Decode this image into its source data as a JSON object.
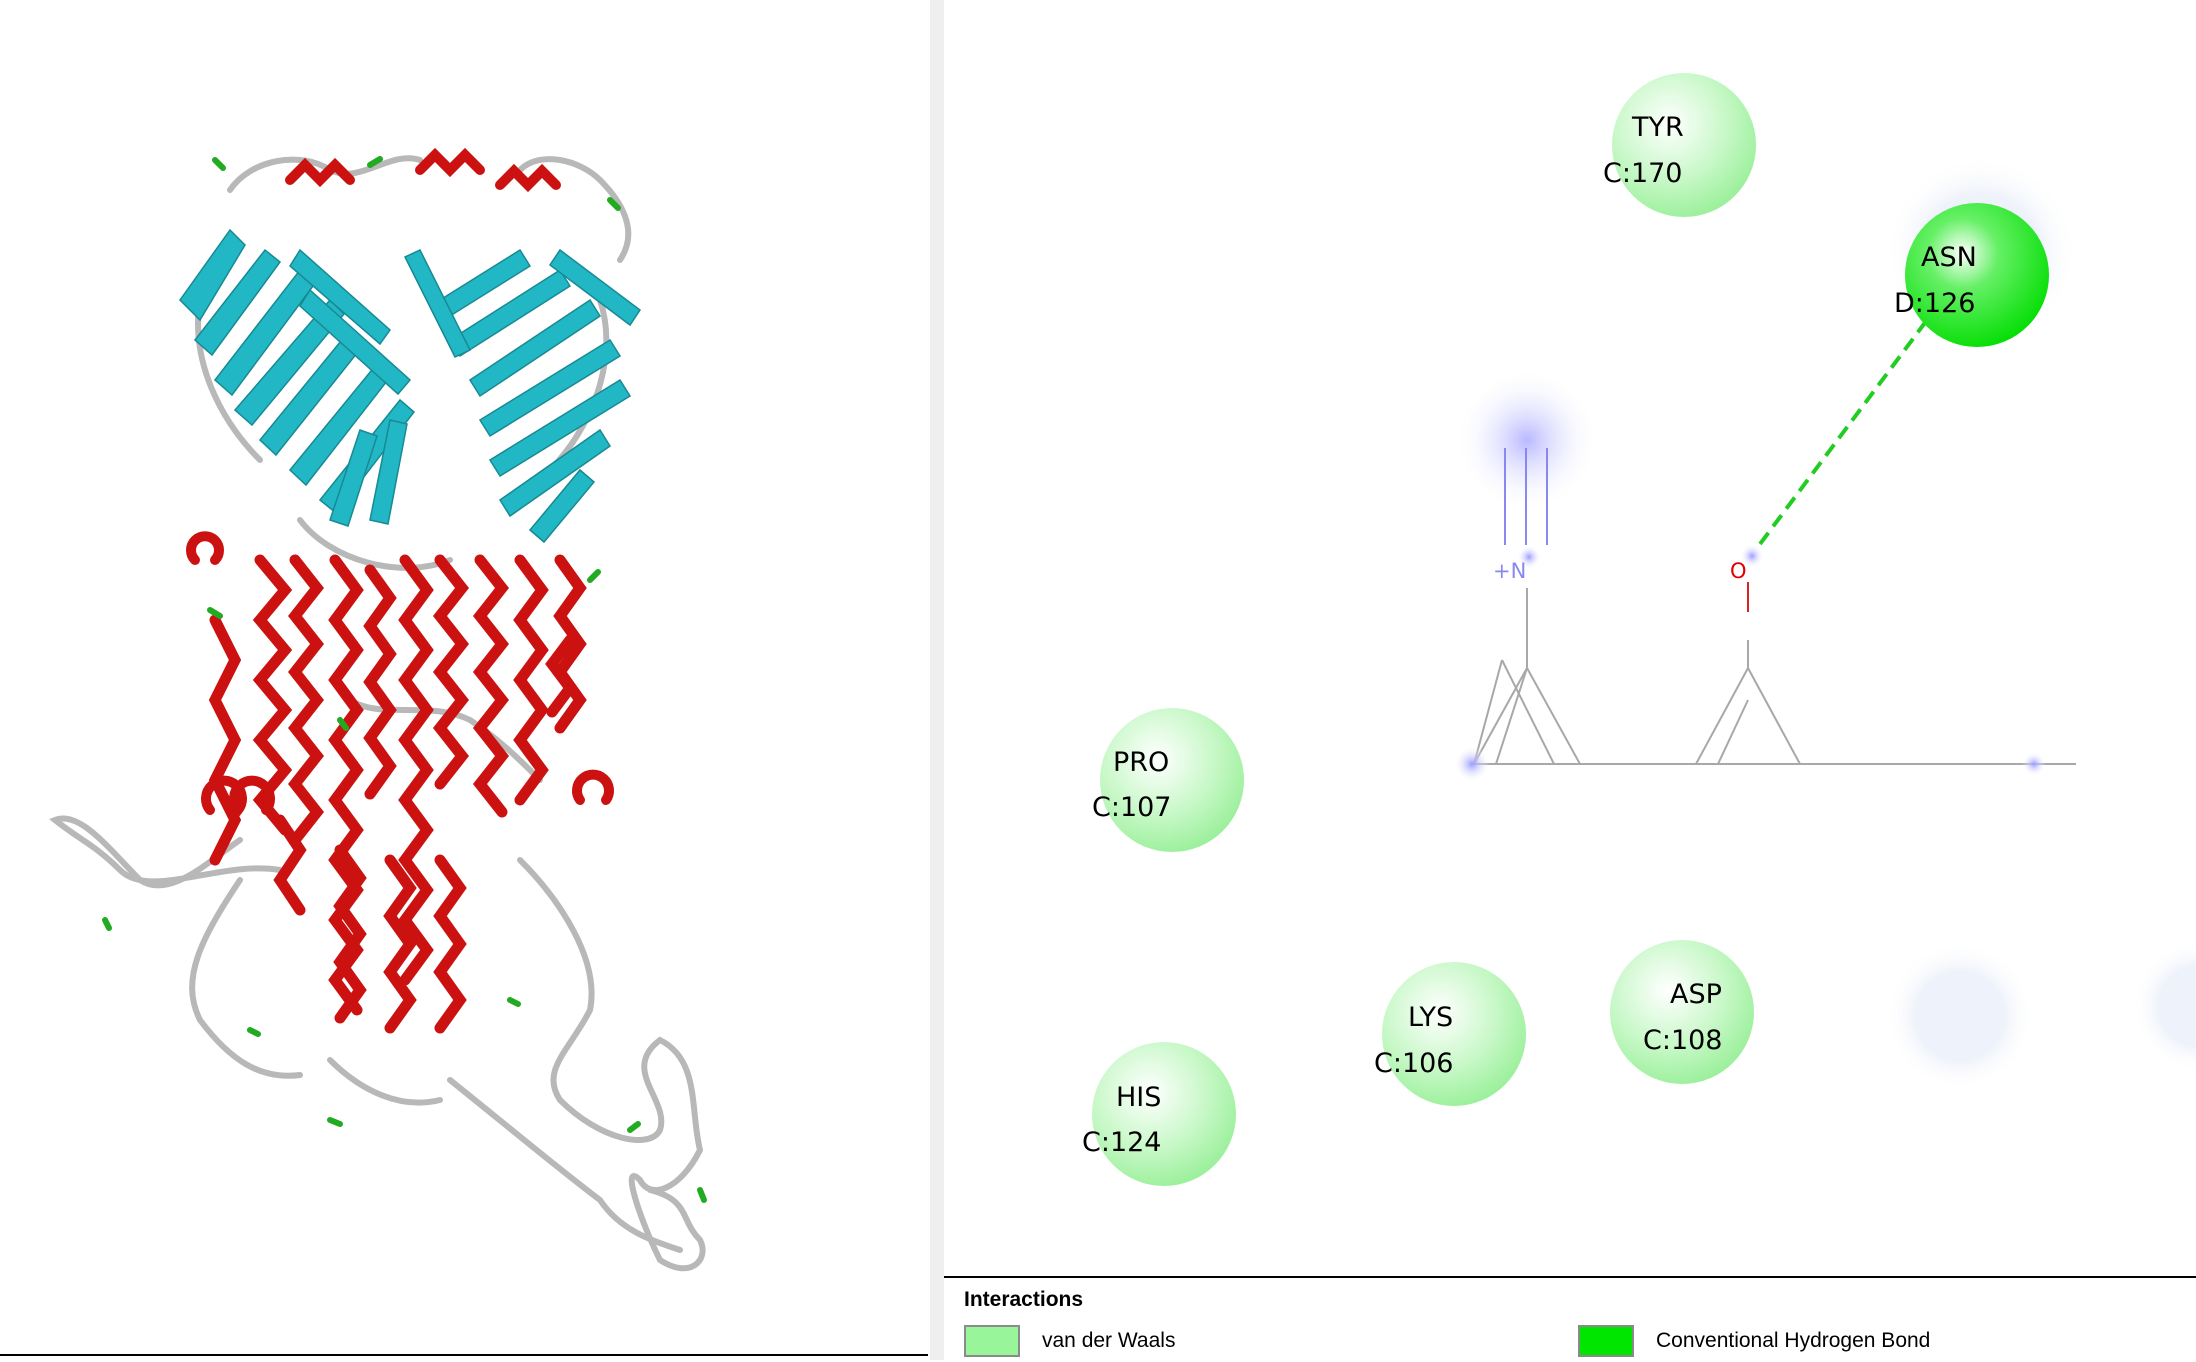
{
  "structure_view": {
    "colors": {
      "helix": "#cc1111",
      "sheet": "#22b7c4",
      "coil": "#b8b8b8",
      "turn": "#22aa22"
    }
  },
  "interaction_diagram": {
    "residues": [
      {
        "name": "TYR",
        "chain_pos": "C:170",
        "type": "vdw"
      },
      {
        "name": "ASN",
        "chain_pos": "D:126",
        "type": "hbond"
      },
      {
        "name": "PRO",
        "chain_pos": "C:107",
        "type": "vdw"
      },
      {
        "name": "LYS",
        "chain_pos": "C:106",
        "type": "vdw"
      },
      {
        "name": "ASP",
        "chain_pos": "C:108",
        "type": "vdw"
      },
      {
        "name": "HIS",
        "chain_pos": "C:124",
        "type": "vdw"
      }
    ],
    "ligand_atoms": {
      "nitrogen": "+N",
      "oxygen": "O"
    },
    "colors": {
      "vdw": "#9ef59e",
      "hbond": "#00e600",
      "bond_line": "#a8a8a8",
      "nitrogen": "#8080ff",
      "oxygen": "#e00000",
      "hbond_line": "#22cc22"
    }
  },
  "legend": {
    "title": "Interactions",
    "items": [
      {
        "label": "van der Waals",
        "color": "#99f599"
      },
      {
        "label": "Conventional Hydrogen Bond",
        "color": "#00e600"
      }
    ]
  }
}
